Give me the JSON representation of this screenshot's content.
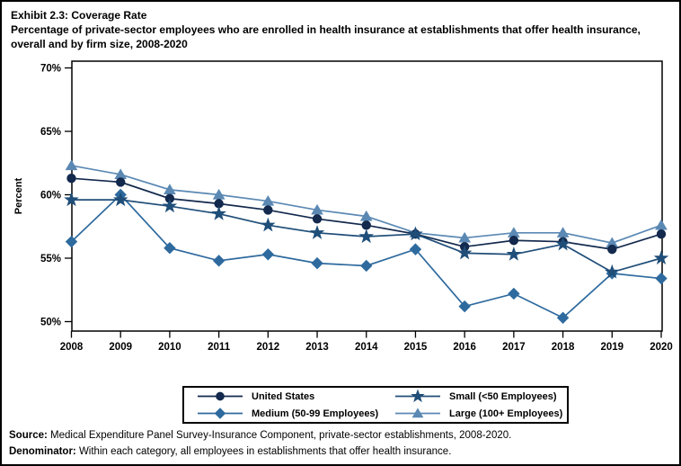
{
  "title": {
    "exhibit": "Exhibit 2.3: Coverage Rate",
    "subtitle": "Percentage of private-sector employees who are enrolled in health insurance at establishments that offer health insurance, overall and by firm size, 2008-2020"
  },
  "chart_data": {
    "type": "line",
    "title": "Exhibit 2.3: Coverage Rate",
    "ylabel": "Percent",
    "xlabel": "",
    "grid": false,
    "legend_position": "bottom",
    "ylim": [
      50,
      70
    ],
    "y_ticks": [
      {
        "value": 70,
        "label": "70%"
      },
      {
        "value": 65,
        "label": "65%"
      },
      {
        "value": 60,
        "label": "60%"
      },
      {
        "value": 55,
        "label": "55%"
      },
      {
        "value": 50,
        "label": "50%"
      }
    ],
    "x": [
      2008,
      2009,
      2010,
      2011,
      2012,
      2013,
      2014,
      2015,
      2016,
      2017,
      2018,
      2019,
      2020
    ],
    "series": [
      {
        "name": "United States",
        "marker": "circle",
        "color": "#13294d",
        "values": [
          61.3,
          61.0,
          59.7,
          59.3,
          58.8,
          58.1,
          57.6,
          56.9,
          55.9,
          56.4,
          56.3,
          55.7,
          56.9
        ]
      },
      {
        "name": "Small (<50 Employees)",
        "marker": "star",
        "color": "#1f4e79",
        "values": [
          59.6,
          59.6,
          59.1,
          58.5,
          57.6,
          57.0,
          56.7,
          56.9,
          55.4,
          55.3,
          56.1,
          53.9,
          55.0
        ]
      },
      {
        "name": "Medium (50-99 Employees)",
        "marker": "diamond",
        "color": "#2e6a9e",
        "values": [
          56.3,
          60.0,
          55.8,
          54.8,
          55.3,
          54.6,
          54.4,
          55.7,
          51.2,
          52.2,
          50.3,
          53.8,
          53.4
        ]
      },
      {
        "name": "Large (100+ Employees)",
        "marker": "triangle",
        "color": "#5b89b4",
        "values": [
          62.3,
          61.6,
          60.4,
          60.0,
          59.5,
          58.8,
          58.3,
          57.0,
          56.6,
          57.0,
          57.0,
          56.2,
          57.6
        ]
      }
    ]
  },
  "footer": {
    "source_label": "Source:",
    "source_text": " Medical Expenditure Panel Survey-Insurance Component, private-sector establishments, 2008-2020.",
    "denominator_label": "Denominator:",
    "denominator_text": " Within each category, all employees in establishments that offer health insurance."
  }
}
